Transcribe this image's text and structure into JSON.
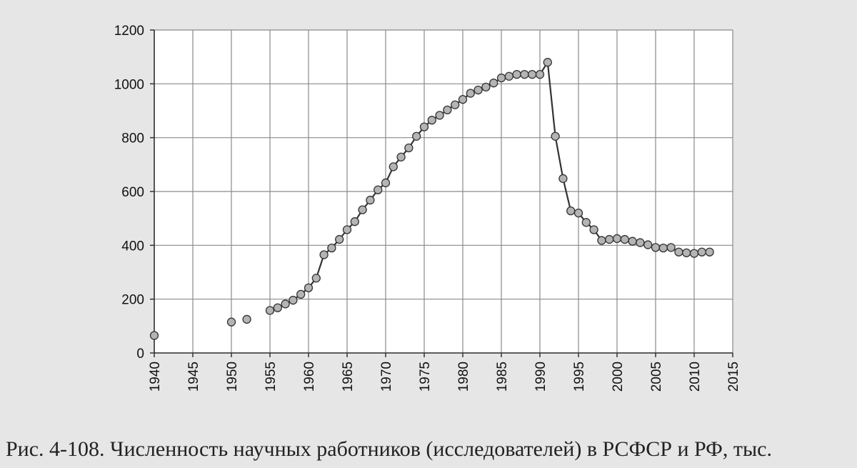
{
  "caption": "Рис. 4-108. Численность научных работников (исследователей) в РСФСР и РФ, тыс.",
  "chart_data": {
    "type": "scatter",
    "title": "",
    "xlabel": "",
    "ylabel": "",
    "xlim": [
      1940,
      2015
    ],
    "ylim": [
      0,
      1200
    ],
    "x_ticks": [
      "1940",
      "1945",
      "1950",
      "1955",
      "1960",
      "1965",
      "1970",
      "1975",
      "1980",
      "1985",
      "1990",
      "1995",
      "2000",
      "2005",
      "2010",
      "2015"
    ],
    "y_ticks": [
      "0",
      "200",
      "400",
      "600",
      "800",
      "1000",
      "1200"
    ],
    "grid": true,
    "connected_from_year": 1955,
    "colors": {
      "marker_fill": "#b4b4b4",
      "marker_stroke": "#333333",
      "line": "#333333",
      "grid": "#8a8a8a",
      "plot_bg": "#ffffff"
    },
    "series": [
      {
        "points": [
          [
            1940,
            65
          ],
          [
            1950,
            115
          ],
          [
            1952,
            125
          ],
          [
            1955,
            158
          ],
          [
            1956,
            168
          ],
          [
            1957,
            182
          ],
          [
            1958,
            196
          ],
          [
            1959,
            218
          ],
          [
            1960,
            242
          ],
          [
            1961,
            278
          ],
          [
            1962,
            365
          ],
          [
            1963,
            390
          ],
          [
            1964,
            422
          ],
          [
            1965,
            458
          ],
          [
            1966,
            488
          ],
          [
            1967,
            532
          ],
          [
            1968,
            568
          ],
          [
            1969,
            606
          ],
          [
            1970,
            632
          ],
          [
            1971,
            692
          ],
          [
            1972,
            728
          ],
          [
            1973,
            762
          ],
          [
            1974,
            805
          ],
          [
            1975,
            840
          ],
          [
            1976,
            865
          ],
          [
            1977,
            883
          ],
          [
            1978,
            903
          ],
          [
            1979,
            922
          ],
          [
            1980,
            942
          ],
          [
            1981,
            965
          ],
          [
            1982,
            977
          ],
          [
            1983,
            988
          ],
          [
            1984,
            1003
          ],
          [
            1985,
            1022
          ],
          [
            1986,
            1028
          ],
          [
            1987,
            1035
          ],
          [
            1988,
            1035
          ],
          [
            1989,
            1035
          ],
          [
            1990,
            1035
          ],
          [
            1991,
            1080
          ],
          [
            1992,
            805
          ],
          [
            1993,
            648
          ],
          [
            1994,
            528
          ],
          [
            1995,
            520
          ],
          [
            1996,
            485
          ],
          [
            1997,
            458
          ],
          [
            1998,
            418
          ],
          [
            1999,
            422
          ],
          [
            2000,
            425
          ],
          [
            2001,
            422
          ],
          [
            2002,
            415
          ],
          [
            2003,
            410
          ],
          [
            2004,
            402
          ],
          [
            2005,
            392
          ],
          [
            2006,
            390
          ],
          [
            2007,
            392
          ],
          [
            2008,
            375
          ],
          [
            2009,
            372
          ],
          [
            2010,
            370
          ],
          [
            2011,
            375
          ],
          [
            2012,
            375
          ]
        ]
      }
    ]
  }
}
